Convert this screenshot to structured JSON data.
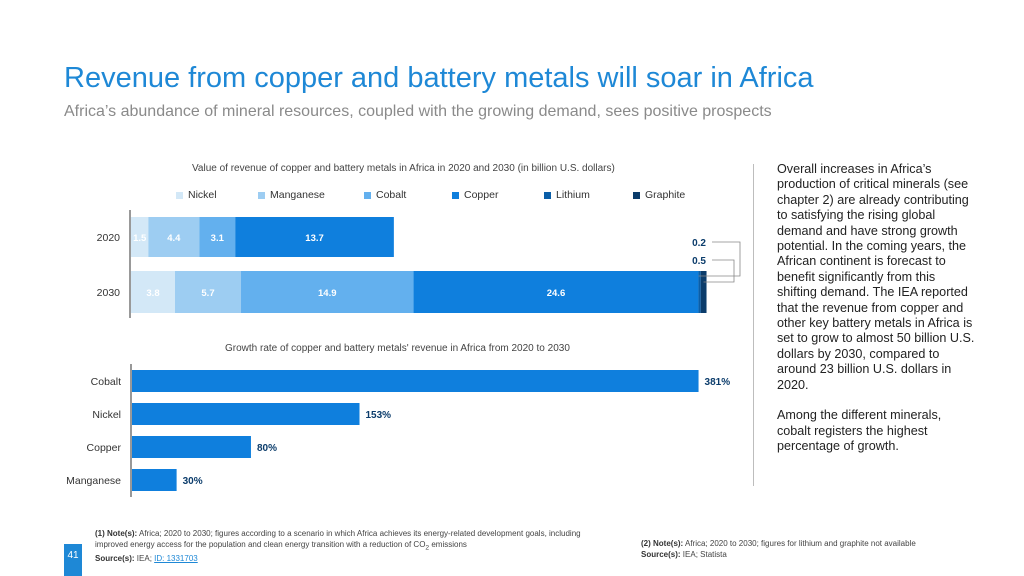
{
  "title": "Revenue from copper and battery metals will soar in Africa",
  "subtitle": "Africa’s abundance of mineral resources, coupled with the growing demand, sees positive prospects",
  "chart_data": [
    {
      "type": "bar",
      "orientation": "horizontal",
      "stacked": true,
      "title": "Value of revenue of copper and battery metals in Africa in 2020 and 2030 (in billion U.S. dollars)",
      "categories": [
        "2020",
        "2030"
      ],
      "series": [
        {
          "name": "Nickel",
          "color": "#d3e8f7",
          "values": [
            1.5,
            3.8
          ]
        },
        {
          "name": "Manganese",
          "color": "#9dcdf2",
          "values": [
            4.4,
            5.7
          ]
        },
        {
          "name": "Cobalt",
          "color": "#63b0ee",
          "values": [
            3.1,
            14.9
          ]
        },
        {
          "name": "Copper",
          "color": "#0f7fdd",
          "values": [
            13.7,
            24.6
          ]
        },
        {
          "name": "Lithium",
          "color": "#0a5ea8",
          "values": [
            0,
            0.2
          ]
        },
        {
          "name": "Graphite",
          "color": "#0b3c6b",
          "values": [
            0,
            0.5
          ]
        }
      ],
      "data_labels": [
        "1.5",
        "4.4",
        "3.1",
        "13.7",
        "3.8",
        "5.7",
        "14.9",
        "24.6"
      ],
      "callout_labels": [
        "0.2",
        "0.5"
      ],
      "legend": [
        "Nickel",
        "Manganese",
        "Cobalt",
        "Copper",
        "Lithium",
        "Graphite"
      ]
    },
    {
      "type": "bar",
      "orientation": "horizontal",
      "title": "Growth rate of copper and battery metals' revenue in Africa from 2020 to 2030",
      "categories": [
        "Cobalt",
        "Nickel",
        "Copper",
        "Manganese"
      ],
      "values": [
        381,
        153,
        80,
        30
      ],
      "labels": [
        "381%",
        "153%",
        "80%",
        "30%"
      ],
      "unit": "%",
      "color": "#0f7fdd"
    }
  ],
  "side_text": {
    "paragraph1": "Overall increases in Africa’s production of critical minerals (see chapter 2) are already contributing to satisfying the rising global demand and have strong growth potential. In the coming years, the African continent is forecast to benefit significantly from this shifting demand. The IEA reported that the revenue from copper and other key battery metals in Africa is set to grow to almost 50 billion U.S. dollars by 2030, compared to around 23 billion U.S. dollars in 2020.",
    "paragraph2": "Among the different minerals, cobalt registers the highest percentage of growth."
  },
  "footer": {
    "left_note_label": "(1) Note(s):",
    "left_note_text": "Africa; 2020 to 2030; figures according to a scenario in which Africa achieves its energy-related development goals, including improved energy access for the population and clean energy transition with a reduction of CO",
    "left_note_sub": "2",
    "left_note_end": " emissions",
    "left_source_label": "Source(s):",
    "left_source_text": "IEA; ",
    "left_source_link": "ID: 1331703",
    "right_note_label": "(2) Note(s):",
    "right_note_text": "Africa; 2020 to 2030; figures for lithium and graphite not available",
    "right_source_label": "Source(s):",
    "right_source_text": "IEA; Statista"
  },
  "page_number": "41"
}
